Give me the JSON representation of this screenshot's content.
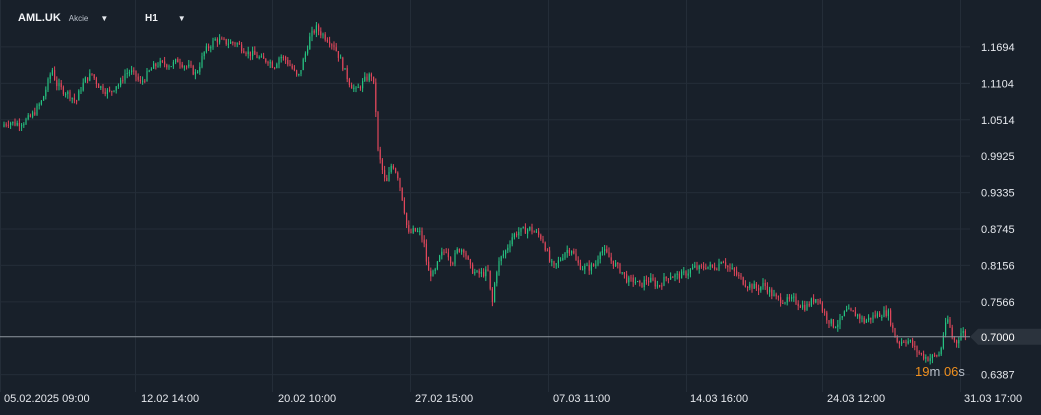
{
  "header": {
    "symbol": "AML.UK",
    "instrument_type": "Akcie",
    "timeframe": "H1"
  },
  "countdown": {
    "minutes": "19",
    "m_label": "m",
    "seconds": "06",
    "s_label": "s"
  },
  "colors": {
    "background": "#18202a",
    "grid": "#242d38",
    "up": "#26c281",
    "down": "#e0475b",
    "axis_text": "#e6e9ee",
    "current_price_line": "#8e959e",
    "countdown": "#f0901e"
  },
  "chart_data": {
    "type": "candlestick",
    "symbol": "AML.UK",
    "timeframe": "H1",
    "y_axis_ticks": [
      "1.1694",
      "1.1104",
      "1.0514",
      "0.9925",
      "0.9335",
      "0.8745",
      "0.8156",
      "0.7566",
      "0.6387"
    ],
    "current_price": "0.7000",
    "x_axis_ticks": [
      "05.02.2025  09:00",
      "12.02  14:00",
      "20.02  10:00",
      "27.02  15:00",
      "07.03  11:00",
      "14.03  16:00",
      "24.03  12:00",
      "31.03  17:00"
    ],
    "ylim": [
      0.63,
      1.2
    ],
    "grid": true,
    "price_path": [
      [
        0,
        1.04
      ],
      [
        8,
        1.048
      ],
      [
        16,
        1.045
      ],
      [
        24,
        1.048
      ],
      [
        30,
        1.055
      ],
      [
        36,
        1.067
      ],
      [
        42,
        1.082
      ],
      [
        48,
        1.112
      ],
      [
        52,
        1.135
      ],
      [
        56,
        1.11
      ],
      [
        62,
        1.1
      ],
      [
        70,
        1.092
      ],
      [
        76,
        1.08
      ],
      [
        80,
        1.1
      ],
      [
        86,
        1.118
      ],
      [
        92,
        1.125
      ],
      [
        98,
        1.108
      ],
      [
        104,
        1.1
      ],
      [
        110,
        1.095
      ],
      [
        116,
        1.108
      ],
      [
        120,
        1.108
      ],
      [
        124,
        1.125
      ],
      [
        130,
        1.13
      ],
      [
        136,
        1.122
      ],
      [
        140,
        1.11
      ],
      [
        146,
        1.122
      ],
      [
        152,
        1.135
      ],
      [
        158,
        1.142
      ],
      [
        164,
        1.142
      ],
      [
        172,
        1.14
      ],
      [
        178,
        1.148
      ],
      [
        184,
        1.14
      ],
      [
        190,
        1.135
      ],
      [
        196,
        1.125
      ],
      [
        200,
        1.142
      ],
      [
        204,
        1.16
      ],
      [
        210,
        1.172
      ],
      [
        216,
        1.182
      ],
      [
        222,
        1.178
      ],
      [
        230,
        1.176
      ],
      [
        236,
        1.176
      ],
      [
        242,
        1.168
      ],
      [
        248,
        1.16
      ],
      [
        256,
        1.155
      ],
      [
        262,
        1.148
      ],
      [
        268,
        1.148
      ],
      [
        274,
        1.138
      ],
      [
        280,
        1.155
      ],
      [
        286,
        1.148
      ],
      [
        292,
        1.135
      ],
      [
        298,
        1.118
      ],
      [
        302,
        1.14
      ],
      [
        306,
        1.162
      ],
      [
        310,
        1.185
      ],
      [
        316,
        1.2
      ],
      [
        322,
        1.19
      ],
      [
        328,
        1.182
      ],
      [
        334,
        1.172
      ],
      [
        340,
        1.15
      ],
      [
        346,
        1.125
      ],
      [
        350,
        1.11
      ],
      [
        356,
        1.098
      ],
      [
        362,
        1.11
      ],
      [
        366,
        1.118
      ],
      [
        372,
        1.125
      ],
      [
        375,
        1.09
      ],
      [
        378,
        1.0
      ],
      [
        382,
        0.972
      ],
      [
        386,
        0.945
      ],
      [
        392,
        0.982
      ],
      [
        398,
        0.96
      ],
      [
        404,
        0.91
      ],
      [
        408,
        0.865
      ],
      [
        414,
        0.872
      ],
      [
        420,
        0.868
      ],
      [
        424,
        0.85
      ],
      [
        428,
        0.805
      ],
      [
        434,
        0.8
      ],
      [
        440,
        0.83
      ],
      [
        446,
        0.842
      ],
      [
        452,
        0.82
      ],
      [
        458,
        0.842
      ],
      [
        464,
        0.842
      ],
      [
        470,
        0.812
      ],
      [
        476,
        0.802
      ],
      [
        482,
        0.802
      ],
      [
        488,
        0.805
      ],
      [
        492,
        0.75
      ],
      [
        496,
        0.805
      ],
      [
        500,
        0.825
      ],
      [
        506,
        0.84
      ],
      [
        512,
        0.862
      ],
      [
        518,
        0.87
      ],
      [
        524,
        0.872
      ],
      [
        530,
        0.875
      ],
      [
        536,
        0.868
      ],
      [
        542,
        0.86
      ],
      [
        546,
        0.842
      ],
      [
        550,
        0.82
      ],
      [
        554,
        0.812
      ],
      [
        560,
        0.825
      ],
      [
        566,
        0.84
      ],
      [
        572,
        0.842
      ],
      [
        576,
        0.822
      ],
      [
        582,
        0.812
      ],
      [
        590,
        0.812
      ],
      [
        596,
        0.818
      ],
      [
        600,
        0.842
      ],
      [
        606,
        0.835
      ],
      [
        612,
        0.822
      ],
      [
        618,
        0.812
      ],
      [
        622,
        0.805
      ],
      [
        628,
        0.79
      ],
      [
        634,
        0.792
      ],
      [
        640,
        0.782
      ],
      [
        646,
        0.792
      ],
      [
        652,
        0.79
      ],
      [
        658,
        0.782
      ],
      [
        664,
        0.792
      ],
      [
        670,
        0.8
      ],
      [
        676,
        0.798
      ],
      [
        682,
        0.8
      ],
      [
        688,
        0.805
      ],
      [
        694,
        0.812
      ],
      [
        700,
        0.81
      ],
      [
        706,
        0.815
      ],
      [
        712,
        0.812
      ],
      [
        718,
        0.815
      ],
      [
        722,
        0.828
      ],
      [
        728,
        0.812
      ],
      [
        734,
        0.805
      ],
      [
        740,
        0.795
      ],
      [
        746,
        0.785
      ],
      [
        752,
        0.782
      ],
      [
        758,
        0.778
      ],
      [
        764,
        0.785
      ],
      [
        770,
        0.772
      ],
      [
        776,
        0.762
      ],
      [
        782,
        0.76
      ],
      [
        788,
        0.758
      ],
      [
        794,
        0.76
      ],
      [
        800,
        0.752
      ],
      [
        806,
        0.748
      ],
      [
        812,
        0.758
      ],
      [
        818,
        0.765
      ],
      [
        822,
        0.745
      ],
      [
        828,
        0.728
      ],
      [
        834,
        0.718
      ],
      [
        840,
        0.725
      ],
      [
        846,
        0.742
      ],
      [
        852,
        0.738
      ],
      [
        858,
        0.735
      ],
      [
        864,
        0.725
      ],
      [
        870,
        0.73
      ],
      [
        876,
        0.735
      ],
      [
        882,
        0.738
      ],
      [
        888,
        0.74
      ],
      [
        894,
        0.705
      ],
      [
        898,
        0.69
      ],
      [
        904,
        0.695
      ],
      [
        910,
        0.692
      ],
      [
        916,
        0.678
      ],
      [
        922,
        0.67
      ],
      [
        928,
        0.665
      ],
      [
        934,
        0.668
      ],
      [
        940,
        0.672
      ],
      [
        944,
        0.71
      ],
      [
        948,
        0.728
      ],
      [
        952,
        0.7
      ],
      [
        956,
        0.69
      ],
      [
        962,
        0.71
      ],
      [
        966,
        0.7
      ]
    ]
  }
}
